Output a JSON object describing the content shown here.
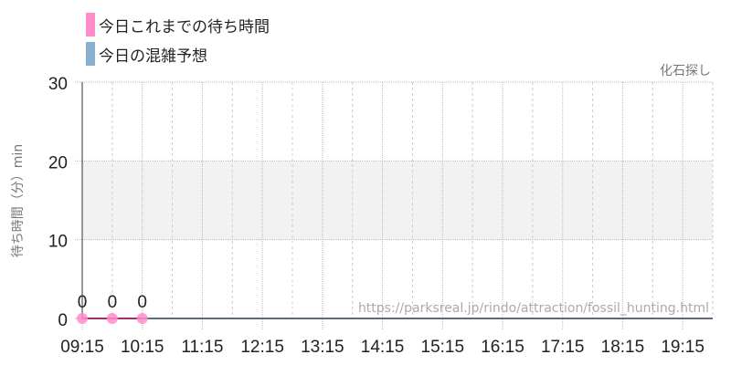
{
  "chart_data": {
    "type": "line",
    "legend": [
      {
        "name": "今日これまでの待ち時間",
        "color": "#ff8ccc"
      },
      {
        "name": "今日の混雑予想",
        "color": "#8ab0d0"
      }
    ],
    "title": "化石探し",
    "ylabel": "待ち時間（分）min",
    "ylim": [
      0,
      30
    ],
    "yticks": [
      0,
      10,
      20,
      30
    ],
    "xlim": [
      "09:15",
      "19:45"
    ],
    "xticks": [
      "09:15",
      "10:15",
      "11:15",
      "12:15",
      "13:15",
      "14:15",
      "15:15",
      "16:15",
      "17:15",
      "18:15",
      "19:15"
    ],
    "band": [
      10,
      20
    ],
    "series": [
      {
        "name": "今日これまでの待ち時間",
        "x": [
          "09:15",
          "09:45",
          "10:15"
        ],
        "y": [
          0,
          0,
          0
        ],
        "labels": [
          "0",
          "0",
          "0"
        ]
      },
      {
        "name": "今日の混雑予想",
        "x": [
          "09:15",
          "19:45"
        ],
        "y": [
          0,
          0
        ]
      }
    ],
    "watermark": "https://parksreal.jp/rindo/attraction/fossil_hunting.html"
  }
}
